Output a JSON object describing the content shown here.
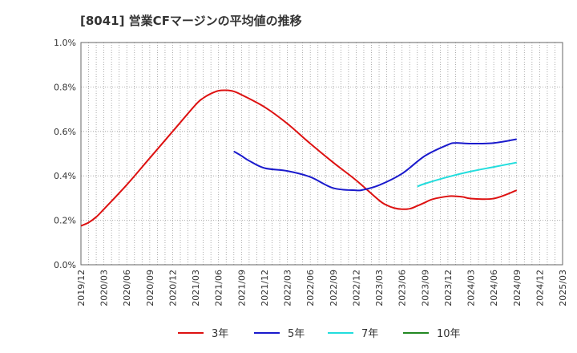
{
  "chart_data": {
    "type": "line",
    "title": "[8041]  営業CFマージンの平均値の推移",
    "xlabel": "",
    "ylabel": "",
    "ylim": [
      0,
      1.0
    ],
    "y_ticks": [
      "0.0%",
      "0.2%",
      "0.4%",
      "0.6%",
      "0.8%",
      "1.0%"
    ],
    "y_tick_values": [
      0,
      0.2,
      0.4,
      0.6,
      0.8,
      1.0
    ],
    "x_ticks": [
      "2019/12",
      "2020/03",
      "2020/06",
      "2020/09",
      "2020/12",
      "2021/03",
      "2021/06",
      "2021/09",
      "2021/12",
      "2022/03",
      "2022/06",
      "2022/09",
      "2022/12",
      "2023/03",
      "2023/06",
      "2023/09",
      "2023/12",
      "2024/03",
      "2024/06",
      "2024/09",
      "2024/12",
      "2025/03"
    ],
    "x_range": [
      "2019/12",
      "2025/03"
    ],
    "grid": "on, dotted vertical monthly lines, dotted horizontal lines",
    "legend_position": "bottom",
    "series": [
      {
        "name": "3年",
        "color": "#dd1111",
        "x": [
          "2019/12",
          "2020/01",
          "2020/02",
          "2020/03",
          "2020/06",
          "2020/09",
          "2020/12",
          "2021/03",
          "2021/04",
          "2021/05",
          "2021/06",
          "2021/07",
          "2021/08",
          "2021/09",
          "2021/12",
          "2022/03",
          "2022/06",
          "2022/09",
          "2022/12",
          "2023/03",
          "2023/04",
          "2023/05",
          "2023/06",
          "2023/07",
          "2023/08",
          "2023/09",
          "2023/10",
          "2023/12",
          "2024/01",
          "2024/02",
          "2024/03",
          "2024/06",
          "2024/09"
        ],
        "values": [
          0.175,
          0.19,
          0.215,
          0.25,
          0.36,
          0.48,
          0.6,
          0.72,
          0.75,
          0.77,
          0.783,
          0.785,
          0.78,
          0.765,
          0.71,
          0.635,
          0.545,
          0.46,
          0.38,
          0.29,
          0.268,
          0.255,
          0.25,
          0.252,
          0.265,
          0.28,
          0.295,
          0.308,
          0.308,
          0.305,
          0.298,
          0.298,
          0.335
        ]
      },
      {
        "name": "5年",
        "color": "#1a1acc",
        "x": [
          "2021/08",
          "2021/09",
          "2021/10",
          "2021/12",
          "2022/03",
          "2022/06",
          "2022/09",
          "2022/12",
          "2023/01",
          "2023/03",
          "2023/06",
          "2023/09",
          "2023/12",
          "2024/01",
          "2024/03",
          "2024/06",
          "2024/09"
        ],
        "values": [
          0.51,
          0.49,
          0.468,
          0.435,
          0.422,
          0.395,
          0.345,
          0.335,
          0.338,
          0.358,
          0.41,
          0.49,
          0.54,
          0.548,
          0.545,
          0.548,
          0.565
        ]
      },
      {
        "name": "7年",
        "color": "#22dddd",
        "x": [
          "2023/08",
          "2023/09",
          "2023/12",
          "2024/03",
          "2024/06",
          "2024/09"
        ],
        "values": [
          0.352,
          0.365,
          0.395,
          0.42,
          0.44,
          0.46
        ]
      },
      {
        "name": "10年",
        "color": "#228822",
        "x": [],
        "values": []
      }
    ]
  }
}
